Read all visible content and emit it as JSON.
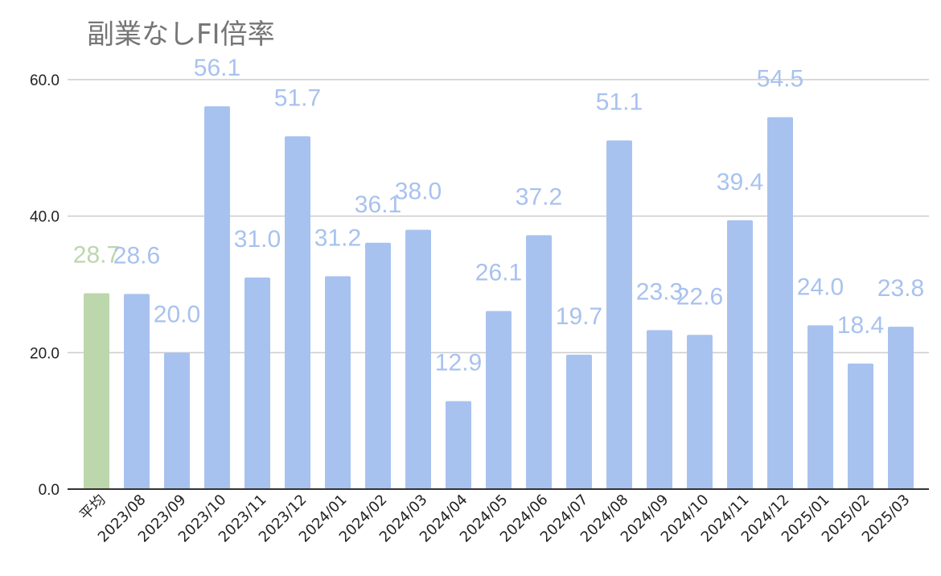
{
  "chart_data": {
    "type": "bar",
    "title": "副業なしFI倍率",
    "xlabel": "",
    "ylabel": "",
    "categories": [
      "平均",
      "2023/08",
      "2023/09",
      "2023/10",
      "2023/11",
      "2023/12",
      "2024/01",
      "2024/02",
      "2024/03",
      "2024/04",
      "2024/05",
      "2024/06",
      "2024/07",
      "2024/08",
      "2024/09",
      "2024/10",
      "2024/11",
      "2024/12",
      "2025/01",
      "2025/02",
      "2025/03"
    ],
    "values": [
      28.7,
      28.6,
      20.0,
      56.1,
      31.0,
      51.7,
      31.2,
      36.1,
      38.0,
      12.9,
      26.1,
      37.2,
      19.7,
      51.1,
      23.3,
      22.6,
      39.4,
      54.5,
      24.0,
      18.4,
      23.8
    ],
    "value_labels": [
      "28.7",
      "28.6",
      "20.0",
      "56.1",
      "31.0",
      "51.7",
      "31.2",
      "36.1",
      "38.0",
      "12.9",
      "26.1",
      "37.2",
      "19.7",
      "51.1",
      "23.3",
      "22.6",
      "39.4",
      "54.5",
      "24.0",
      "18.4",
      "23.8"
    ],
    "highlight_index": 0,
    "ylim": [
      0,
      60
    ],
    "yticks": [
      0,
      20,
      40,
      60
    ],
    "ytick_labels": [
      "0.0",
      "20.0",
      "40.0",
      "60.0"
    ],
    "grid": true,
    "legend": "none",
    "colors": {
      "bar": "#a8c2ef",
      "highlight": "#bcd7ac",
      "label": "#a8c2ef",
      "highlight_label": "#bcd7ac",
      "grid": "#cccccc",
      "baseline": "#333333",
      "title": "#757575"
    }
  }
}
